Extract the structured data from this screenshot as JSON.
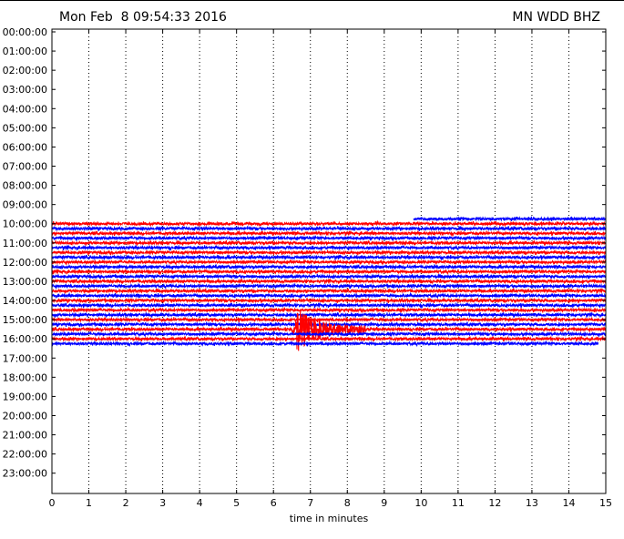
{
  "header": {
    "date_text": "Mon Feb  8 09:54:33 2016",
    "station_text": "MN WDD BHZ"
  },
  "chart_data": {
    "type": "line",
    "title": "",
    "xlabel": "time in minutes",
    "ylabel": "",
    "xlim": [
      0,
      15
    ],
    "x_ticks": [
      "0",
      "1",
      "2",
      "3",
      "4",
      "5",
      "6",
      "7",
      "8",
      "9",
      "10",
      "11",
      "12",
      "13",
      "14",
      "15"
    ],
    "y_ticks": [
      "00:00:00",
      "01:00:00",
      "02:00:00",
      "03:00:00",
      "04:00:00",
      "05:00:00",
      "06:00:00",
      "07:00:00",
      "08:00:00",
      "09:00:00",
      "10:00:00",
      "11:00:00",
      "12:00:00",
      "13:00:00",
      "14:00:00",
      "15:00:00",
      "16:00:00",
      "17:00:00",
      "18:00:00",
      "19:00:00",
      "20:00:00",
      "21:00:00",
      "22:00:00",
      "23:00:00"
    ],
    "grid": "vertical dotted at each minute",
    "trace_colors": [
      "#0000ff",
      "#ff0000"
    ],
    "trace_interval_minutes": 15,
    "first_trace_start": "09:45:00",
    "first_trace_start_minute": 9.8,
    "last_trace_start": "16:15:00",
    "last_trace_end_minute": 14.8,
    "event": {
      "start_minute": 6.5,
      "end_minute": 8.5,
      "peak_minute": 6.6,
      "trace_start": "15:30:00"
    }
  }
}
